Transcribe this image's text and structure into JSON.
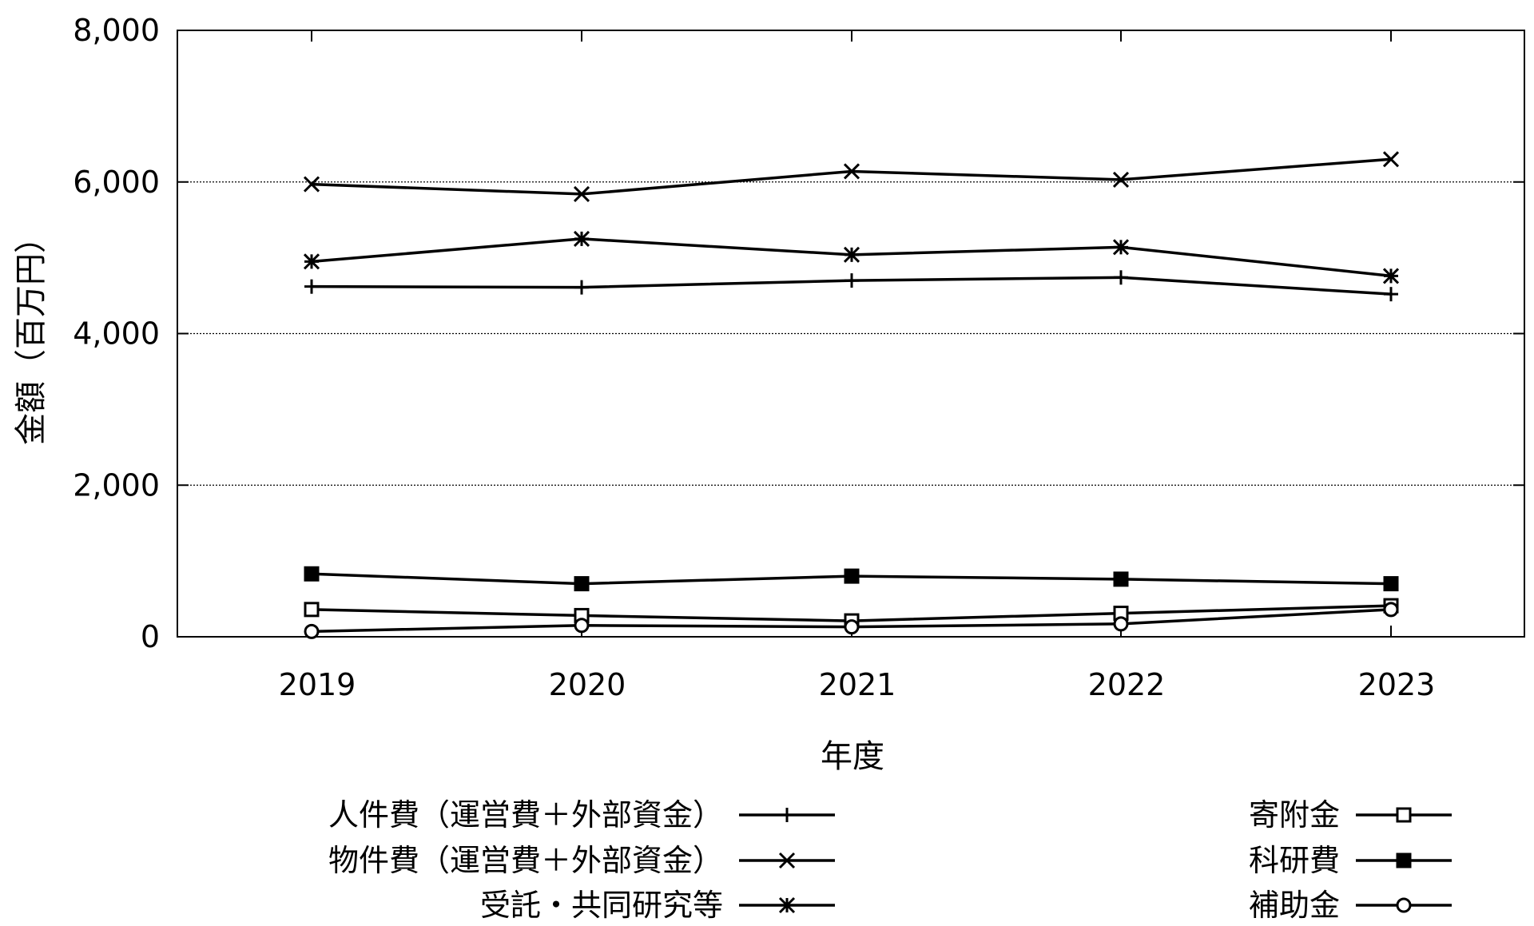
{
  "chart_data": {
    "type": "line",
    "title": "",
    "xlabel": "年度",
    "ylabel": "金額（百万円）",
    "x": [
      "2019",
      "2020",
      "2021",
      "2022",
      "2023"
    ],
    "ylim": [
      0,
      8000
    ],
    "yticks": [
      0,
      2000,
      4000,
      6000,
      8000
    ],
    "ytick_labels": [
      "0",
      "2,000",
      "4,000",
      "6,000",
      "8,000"
    ],
    "grid": "horizontal-dotted",
    "legend_position": "bottom",
    "series": [
      {
        "name": "人件費（運営費＋外部資金）",
        "marker": "plus",
        "values": [
          4620,
          4610,
          4700,
          4740,
          4520
        ]
      },
      {
        "name": "物件費（運営費＋外部資金）",
        "marker": "cross",
        "values": [
          5970,
          5840,
          6140,
          6030,
          6300
        ]
      },
      {
        "name": "受託・共同研究等",
        "marker": "star",
        "values": [
          4950,
          5250,
          5040,
          5140,
          4760
        ]
      },
      {
        "name": "寄附金",
        "marker": "square-open",
        "values": [
          360,
          280,
          210,
          310,
          410
        ]
      },
      {
        "name": "科研費",
        "marker": "square-filled",
        "values": [
          830,
          700,
          800,
          760,
          700
        ]
      },
      {
        "name": "補助金",
        "marker": "circle-open",
        "values": [
          70,
          150,
          130,
          170,
          360
        ]
      }
    ]
  }
}
